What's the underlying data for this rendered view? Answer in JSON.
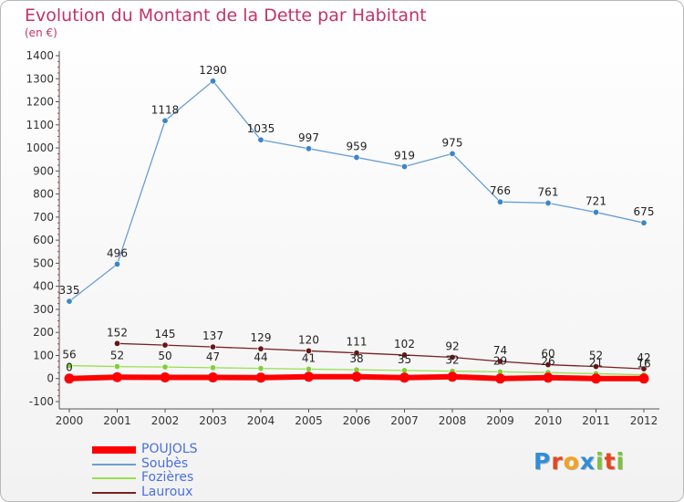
{
  "chart_data": {
    "type": "line",
    "title": "Evolution du Montant de la Dette par Habitant",
    "subtitle": "(en €)",
    "x": [
      "2000",
      "2001",
      "2002",
      "2003",
      "2004",
      "2005",
      "2006",
      "2007",
      "2008",
      "2009",
      "2010",
      "2011",
      "2012"
    ],
    "yticks": [
      "1400",
      "1300",
      "1200",
      "1100",
      "1000",
      "900",
      "800",
      "700",
      "600",
      "500",
      "400",
      "300",
      "200",
      "100",
      "0",
      "-100"
    ],
    "ylim": [
      -100,
      1400
    ],
    "grid": false,
    "legend_position": "bottom-left",
    "series": [
      {
        "name": "POUJOLS",
        "color": "#ff0000",
        "values": [
          0,
          6,
          5,
          5,
          4,
          8,
          8,
          4,
          8,
          0,
          4,
          0,
          0
        ],
        "labels": []
      },
      {
        "name": "Soubès",
        "color": "#6a9fd4",
        "values": [
          335,
          496,
          1118,
          1290,
          1035,
          997,
          959,
          919,
          975,
          766,
          761,
          721,
          675
        ],
        "labels": [
          "335",
          "496",
          "1118",
          "1290",
          "1035",
          "997",
          "959",
          "919",
          "975",
          "766",
          "761",
          "721",
          "675"
        ]
      },
      {
        "name": "Fozières",
        "color": "#99e04a",
        "values": [
          56,
          52,
          50,
          47,
          44,
          41,
          38,
          35,
          32,
          29,
          26,
          21,
          16
        ],
        "labels": [
          "56",
          "52",
          "50",
          "47",
          "44",
          "41",
          "38",
          "35",
          "32",
          "29",
          "26",
          "21",
          "16"
        ]
      },
      {
        "name": "Lauroux",
        "color": "#7a2020",
        "values": [
          0,
          152,
          145,
          137,
          129,
          120,
          111,
          102,
          92,
          74,
          60,
          52,
          42
        ],
        "labels": [
          "0",
          "152",
          "145",
          "137",
          "129",
          "120",
          "111",
          "102",
          "92",
          "74",
          "60",
          "52",
          "42"
        ]
      }
    ]
  },
  "logo": {
    "letters": [
      "P",
      "r",
      "o",
      "x",
      "i",
      "t",
      "i"
    ],
    "colors": [
      "#2e8fd8",
      "#e8451e",
      "#f2a41b",
      "#2e8fd8",
      "#7ec23a",
      "#e8451e",
      "#7ec23a"
    ]
  }
}
